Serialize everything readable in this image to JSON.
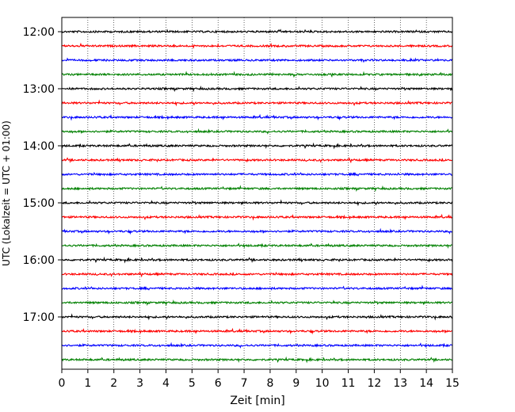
{
  "chart_data": {
    "type": "line",
    "title": "",
    "xlabel": "Zeit  [min]",
    "ylabel": "UTC (Lokalzeit = UTC + 01:00)",
    "xlim": [
      0,
      15
    ],
    "x_ticks": [
      0,
      1,
      2,
      3,
      4,
      5,
      6,
      7,
      8,
      9,
      10,
      11,
      12,
      13,
      14,
      15
    ],
    "grid": "vertical-dotted",
    "legend": "none",
    "y_tick_labels": [
      "12:00",
      "13:00",
      "14:00",
      "15:00",
      "16:00",
      "17:00"
    ],
    "trace_interval_min": 15,
    "series": [
      {
        "start": "12:00",
        "color": "#000000"
      },
      {
        "start": "12:15",
        "color": "#ff0000"
      },
      {
        "start": "12:30",
        "color": "#0000ff"
      },
      {
        "start": "12:45",
        "color": "#008000"
      },
      {
        "start": "13:00",
        "color": "#000000"
      },
      {
        "start": "13:15",
        "color": "#ff0000"
      },
      {
        "start": "13:30",
        "color": "#0000ff"
      },
      {
        "start": "13:45",
        "color": "#008000"
      },
      {
        "start": "14:00",
        "color": "#000000"
      },
      {
        "start": "14:15",
        "color": "#ff0000"
      },
      {
        "start": "14:30",
        "color": "#0000ff"
      },
      {
        "start": "14:45",
        "color": "#008000"
      },
      {
        "start": "15:00",
        "color": "#000000"
      },
      {
        "start": "15:15",
        "color": "#ff0000"
      },
      {
        "start": "15:30",
        "color": "#0000ff"
      },
      {
        "start": "15:45",
        "color": "#008000"
      },
      {
        "start": "16:00",
        "color": "#000000"
      },
      {
        "start": "16:15",
        "color": "#ff0000"
      },
      {
        "start": "16:30",
        "color": "#0000ff"
      },
      {
        "start": "16:45",
        "color": "#008000"
      },
      {
        "start": "17:00",
        "color": "#000000"
      },
      {
        "start": "17:15",
        "color": "#ff0000"
      },
      {
        "start": "17:30",
        "color": "#0000ff"
      },
      {
        "start": "17:45",
        "color": "#008000"
      }
    ]
  }
}
